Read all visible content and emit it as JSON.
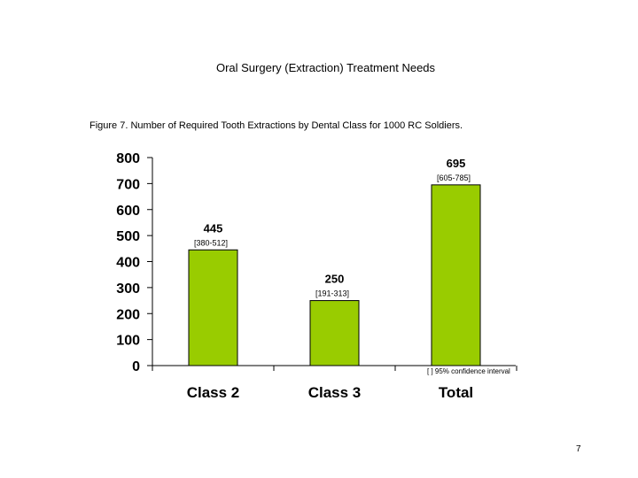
{
  "slide": {
    "title": "Oral Surgery (Extraction) Treatment Needs",
    "caption": "Figure 7.  Number of Required Tooth Extractions by Dental Class for 1000 RC Soldiers.",
    "page_number": "7"
  },
  "chart_data": {
    "type": "bar",
    "categories": [
      "Class 2",
      "Class 3",
      "Total"
    ],
    "values": [
      445,
      250,
      695
    ],
    "value_labels": [
      "445",
      "250",
      "695"
    ],
    "confidence_intervals": [
      "[380-512]",
      "[191-313]",
      "[605-785]"
    ],
    "ylim": [
      0,
      800
    ],
    "yticks": [
      "0",
      "100",
      "200",
      "300",
      "400",
      "500",
      "600",
      "700",
      "800"
    ],
    "legend": "[  ] 95% confidence interval",
    "bar_color": "#99cc00",
    "grid": false,
    "legend_position": "bottom-right"
  }
}
